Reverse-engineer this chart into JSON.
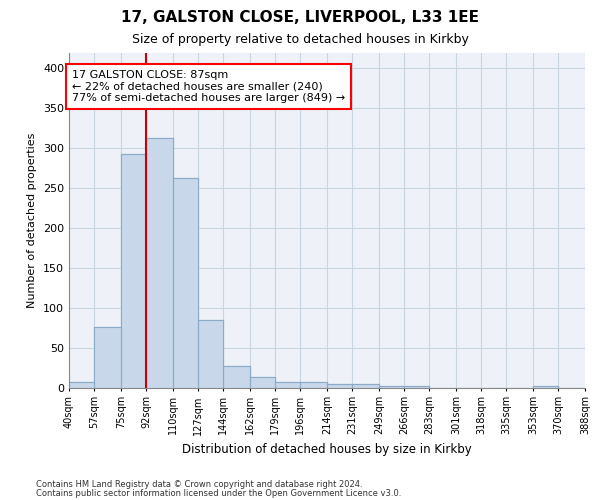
{
  "title": "17, GALSTON CLOSE, LIVERPOOL, L33 1EE",
  "subtitle": "Size of property relative to detached houses in Kirkby",
  "xlabel": "Distribution of detached houses by size in Kirkby",
  "ylabel": "Number of detached properties",
  "footnote1": "Contains HM Land Registry data © Crown copyright and database right 2024.",
  "footnote2": "Contains public sector information licensed under the Open Government Licence v3.0.",
  "bar_color": "#c8d8ea",
  "bar_edgecolor": "#8aaac8",
  "grid_color": "#c8d4e0",
  "redline_color": "#cc0000",
  "annotation_text": "17 GALSTON CLOSE: 87sqm\n← 22% of detached houses are smaller (240)\n77% of semi-detached houses are larger (849) →",
  "bin_edges": [
    40,
    57,
    75,
    92,
    110,
    127,
    144,
    162,
    179,
    196,
    214,
    231,
    249,
    266,
    283,
    301,
    318,
    335,
    353,
    370,
    388
  ],
  "bar_heights": [
    7,
    76,
    293,
    313,
    263,
    85,
    27,
    13,
    7,
    7,
    4,
    4,
    2,
    2,
    0,
    0,
    0,
    0,
    2,
    0
  ],
  "redline_x": 92,
  "ylim": [
    0,
    420
  ],
  "yticks": [
    0,
    50,
    100,
    150,
    200,
    250,
    300,
    350,
    400
  ],
  "fig_bg": "#ffffff",
  "ax_bg": "#eef2f8"
}
